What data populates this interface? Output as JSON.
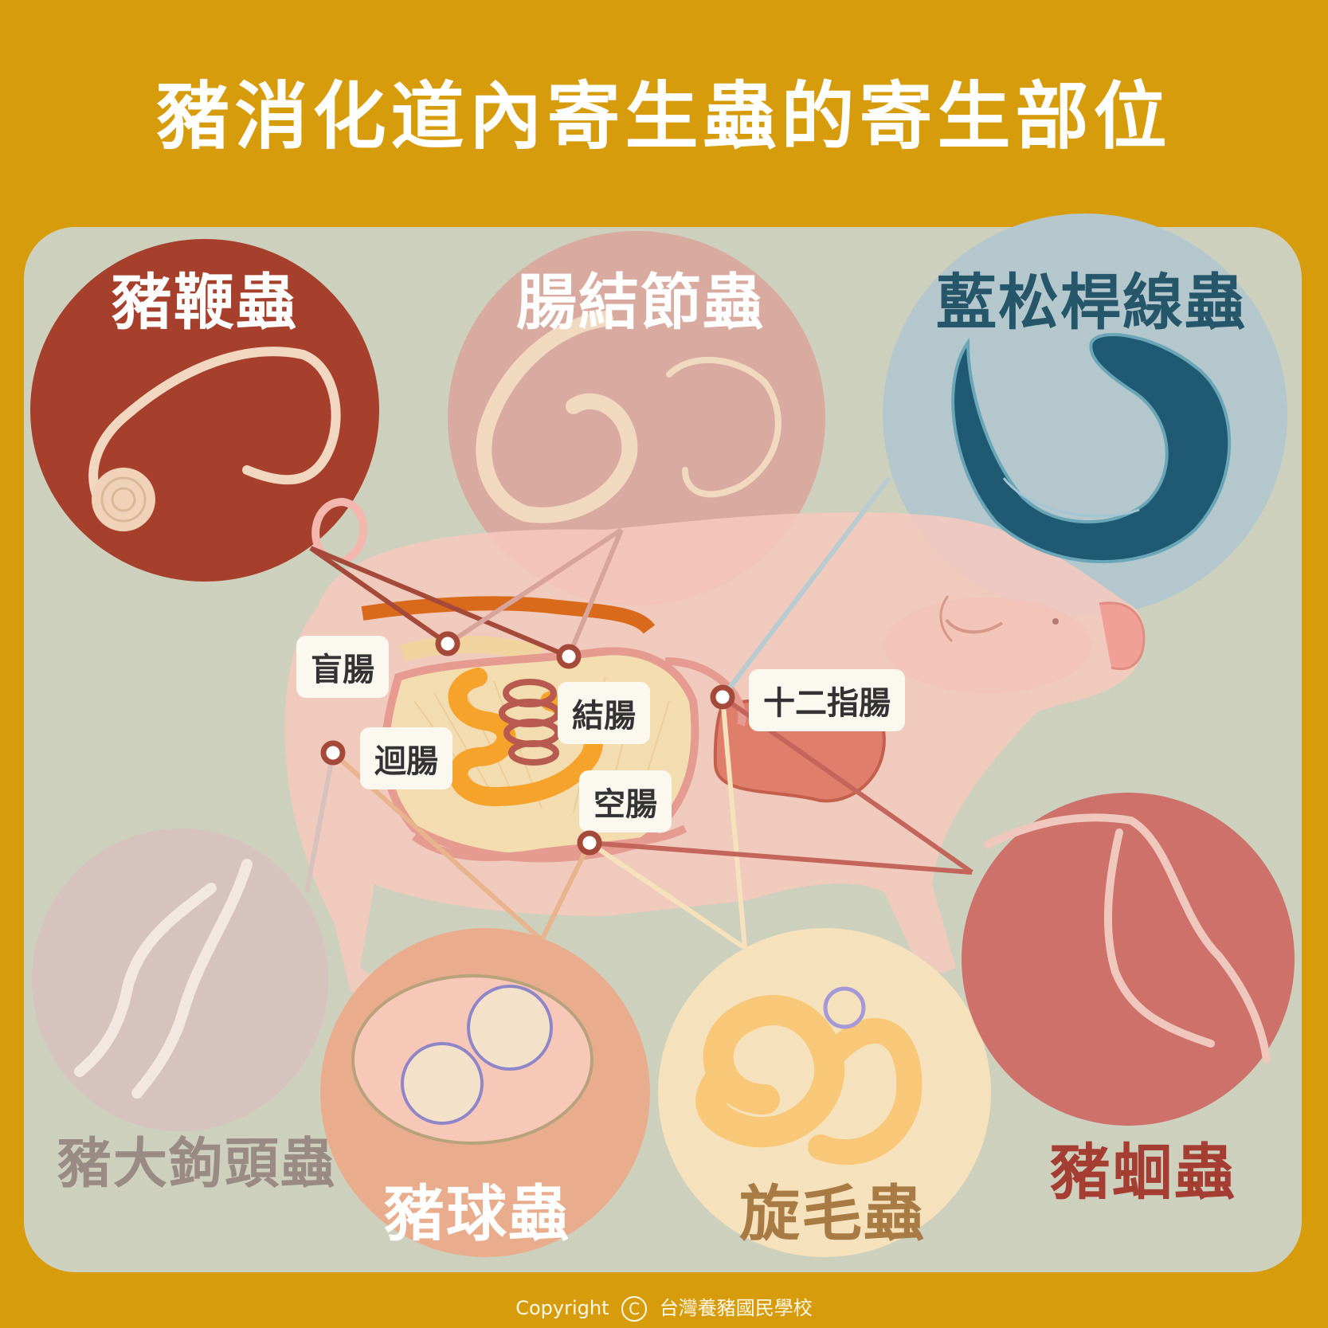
{
  "title": "豬消化道內寄生蟲的寄生部位",
  "parasites": {
    "whipworm": "豬鞭蟲",
    "nodular_worm": "腸結節蟲",
    "stephanurus": "藍松桿線蟲",
    "thorny_headed_worm": "豬大鉤頭蟲",
    "coccidia": "豬球蟲",
    "trichinella": "旋毛蟲",
    "roundworm": "豬蛔蟲"
  },
  "organs": {
    "cecum": "盲腸",
    "colon": "結腸",
    "duodenum": "十二指腸",
    "ileum": "迴腸",
    "jejunum": "空腸"
  },
  "copyright": {
    "prefix": "Copyright",
    "symbol": "C",
    "owner": "台灣養豬國民學校"
  },
  "colors": {
    "background": "#d79c0b",
    "panel": "#cdd0bd",
    "whipworm_circle": "#a6402c",
    "nodular_circle": "#d9aaa0",
    "stephanurus_circle": "#b3c7cd",
    "thorny_circle": "#d7c1bd",
    "coccidia_circle": "#e9ad8d",
    "trichinella_circle": "#f6e1bd",
    "roundworm_circle": "#cd716a"
  }
}
